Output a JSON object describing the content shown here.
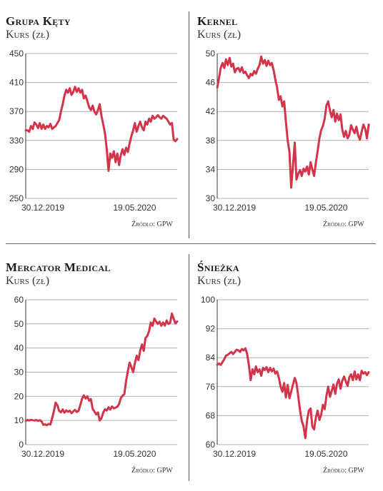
{
  "source_label": "Źródło: GPW",
  "colors": {
    "line": "#d4344a",
    "grid": "#b0b0b0",
    "axis": "#333333"
  },
  "chart_data": [
    {
      "type": "line",
      "title": "Grupa Kęty",
      "subtitle": "Kurs (zł)",
      "ylim": [
        250,
        450
      ],
      "yticks": [
        250,
        290,
        330,
        370,
        410,
        450
      ],
      "x_tick_labels": [
        "30.12.2019",
        "19.05.2020"
      ],
      "x_tick_index": [
        0,
        61
      ],
      "grid": true,
      "x": [
        0,
        1,
        2,
        3,
        4,
        5,
        6,
        7,
        8,
        9,
        10,
        11,
        12,
        13,
        14,
        15,
        16,
        17,
        18,
        19,
        20,
        21,
        22,
        23,
        24,
        25,
        26,
        27,
        28,
        29,
        30,
        31,
        32,
        33,
        34,
        35,
        36,
        37,
        38,
        39,
        40,
        41,
        42,
        43,
        44,
        45,
        46,
        47,
        48,
        49,
        50,
        51,
        52,
        53,
        54,
        55,
        56,
        57,
        58,
        59,
        60,
        61,
        62,
        63,
        64,
        65,
        66,
        67,
        68,
        69,
        70,
        71,
        72,
        73,
        74,
        75,
        76,
        77,
        78,
        79,
        80,
        81,
        82,
        83,
        84,
        85,
        86
      ],
      "values": [
        344,
        344,
        342,
        350,
        346,
        355,
        352,
        347,
        354,
        346,
        352,
        346,
        350,
        348,
        353,
        346,
        348,
        350,
        354,
        358,
        370,
        380,
        392,
        400,
        396,
        402,
        393,
        397,
        404,
        397,
        402,
        396,
        400,
        388,
        392,
        384,
        376,
        372,
        378,
        370,
        366,
        372,
        380,
        364,
        352,
        340,
        318,
        288,
        312,
        306,
        315,
        300,
        312,
        296,
        310,
        318,
        310,
        320,
        314,
        326,
        336,
        344,
        354,
        342,
        350,
        356,
        348,
        344,
        356,
        352,
        360,
        356,
        364,
        360,
        362,
        365,
        362,
        360,
        364,
        362,
        360,
        356,
        352,
        354,
        331,
        329,
        332
      ]
    },
    {
      "type": "line",
      "title": "Kernel",
      "subtitle": "Kurs (zł)",
      "ylim": [
        30,
        50
      ],
      "yticks": [
        30,
        34,
        38,
        42,
        46,
        50
      ],
      "x_tick_labels": [
        "30.12.2019",
        "19.05.2020"
      ],
      "x_tick_index": [
        0,
        61
      ],
      "grid": true,
      "x": [
        0,
        1,
        2,
        3,
        4,
        5,
        6,
        7,
        8,
        9,
        10,
        11,
        12,
        13,
        14,
        15,
        16,
        17,
        18,
        19,
        20,
        21,
        22,
        23,
        24,
        25,
        26,
        27,
        28,
        29,
        30,
        31,
        32,
        33,
        34,
        35,
        36,
        37,
        38,
        39,
        40,
        41,
        42,
        43,
        44,
        45,
        46,
        47,
        48,
        49,
        50,
        51,
        52,
        53,
        54,
        55,
        56,
        57,
        58,
        59,
        60,
        61,
        62,
        63,
        64,
        65,
        66,
        67,
        68,
        69,
        70,
        71,
        72,
        73,
        74,
        75,
        76,
        77,
        78,
        79,
        80,
        81,
        82,
        83,
        84,
        85,
        86
      ],
      "values": [
        45.3,
        46.6,
        48.0,
        48.7,
        48.0,
        49.2,
        48.4,
        49.4,
        48.2,
        48.6,
        47.4,
        47.9,
        48.0,
        47.5,
        48.1,
        47.3,
        47.5,
        47.0,
        46.6,
        47.2,
        47.0,
        47.6,
        47.2,
        47.9,
        48.4,
        49.6,
        48.6,
        49.1,
        48.3,
        49.0,
        48.4,
        48.7,
        47.7,
        46.4,
        45.3,
        43.6,
        44.1,
        42.7,
        43.4,
        40.6,
        38.0,
        36.4,
        31.5,
        34.5,
        37.7,
        32.6,
        33.4,
        33.9,
        33.1,
        34.1,
        33.7,
        34.4,
        33.3,
        35.0,
        34.0,
        33.1,
        34.9,
        36.5,
        38.3,
        39.4,
        40.0,
        41.0,
        42.8,
        43.4,
        42.1,
        41.2,
        42.2,
        40.6,
        41.7,
        40.8,
        41.6,
        39.5,
        38.5,
        39.3,
        38.3,
        38.8,
        40.1,
        39.5,
        39.0,
        39.9,
        38.7,
        38.1,
        39.2,
        40.2,
        39.6,
        38.3,
        40.2
      ]
    },
    {
      "type": "line",
      "title": "Mercator Medical",
      "subtitle": "Kurs (zł)",
      "ylim": [
        0,
        60
      ],
      "yticks": [
        0,
        10,
        20,
        30,
        40,
        50,
        60
      ],
      "x_tick_labels": [
        "30.12.2019",
        "19.05.2020"
      ],
      "x_tick_index": [
        0,
        61
      ],
      "grid": true,
      "x": [
        0,
        1,
        2,
        3,
        4,
        5,
        6,
        7,
        8,
        9,
        10,
        11,
        12,
        13,
        14,
        15,
        16,
        17,
        18,
        19,
        20,
        21,
        22,
        23,
        24,
        25,
        26,
        27,
        28,
        29,
        30,
        31,
        32,
        33,
        34,
        35,
        36,
        37,
        38,
        39,
        40,
        41,
        42,
        43,
        44,
        45,
        46,
        47,
        48,
        49,
        50,
        51,
        52,
        53,
        54,
        55,
        56,
        57,
        58,
        59,
        60,
        61,
        62,
        63,
        64,
        65,
        66,
        67,
        68,
        69,
        70,
        71,
        72,
        73,
        74,
        75,
        76,
        77,
        78,
        79,
        80,
        81,
        82,
        83,
        84,
        85,
        86
      ],
      "values": [
        9.8,
        10.2,
        10.0,
        10.3,
        10.1,
        10.0,
        10.2,
        9.8,
        10.1,
        9.6,
        8.2,
        8.4,
        8.0,
        8.6,
        8.3,
        11.0,
        13.8,
        17.4,
        16.2,
        14.0,
        13.4,
        14.6,
        13.2,
        14.2,
        13.6,
        14.1,
        13.0,
        13.8,
        14.4,
        13.5,
        14.0,
        16.4,
        19.0,
        20.4,
        19.1,
        20.0,
        18.2,
        18.9,
        14.8,
        13.7,
        12.5,
        13.3,
        10.0,
        10.9,
        13.3,
        14.6,
        14.1,
        15.5,
        14.5,
        15.8,
        15.0,
        15.3,
        15.7,
        16.8,
        19.3,
        20.3,
        20.9,
        26.5,
        30.5,
        34.0,
        32.0,
        30.0,
        33.8,
        36.8,
        35.0,
        39.0,
        41.5,
        38.8,
        44.2,
        45.0,
        47.0,
        50.6,
        49.2,
        52.2,
        51.0,
        50.0,
        50.9,
        49.2,
        50.6,
        49.3,
        51.4,
        50.0,
        50.4,
        54.3,
        52.1,
        50.2,
        51.0
      ]
    },
    {
      "type": "line",
      "title": "Śnieżka",
      "subtitle": "Kurs (zł)",
      "ylim": [
        60,
        100
      ],
      "yticks": [
        60,
        68,
        76,
        84,
        92,
        100
      ],
      "x_tick_labels": [
        "30.12.2019",
        "19.05.2020"
      ],
      "x_tick_index": [
        0,
        61
      ],
      "grid": true,
      "x": [
        0,
        1,
        2,
        3,
        4,
        5,
        6,
        7,
        8,
        9,
        10,
        11,
        12,
        13,
        14,
        15,
        16,
        17,
        18,
        19,
        20,
        21,
        22,
        23,
        24,
        25,
        26,
        27,
        28,
        29,
        30,
        31,
        32,
        33,
        34,
        35,
        36,
        37,
        38,
        39,
        40,
        41,
        42,
        43,
        44,
        45,
        46,
        47,
        48,
        49,
        50,
        51,
        52,
        53,
        54,
        55,
        56,
        57,
        58,
        59,
        60,
        61,
        62,
        63,
        64,
        65,
        66,
        67,
        68,
        69,
        70,
        71,
        72,
        73,
        74,
        75,
        76,
        77,
        78,
        79,
        80,
        81,
        82,
        83,
        84,
        85,
        86
      ],
      "values": [
        82.0,
        82.4,
        82.0,
        82.8,
        83.6,
        84.6,
        84.8,
        85.2,
        85.6,
        85.0,
        85.6,
        86.2,
        86.0,
        85.6,
        86.4,
        86.0,
        86.6,
        85.0,
        81.8,
        77.8,
        80.8,
        79.4,
        81.6,
        80.0,
        80.8,
        79.0,
        81.2,
        80.6,
        81.4,
        80.0,
        81.2,
        80.2,
        81.0,
        79.6,
        80.2,
        78.4,
        76.0,
        74.6,
        77.0,
        73.0,
        76.5,
        72.8,
        74.6,
        76.6,
        78.4,
        77.0,
        73.4,
        69.4,
        66.6,
        65.0,
        61.8,
        66.6,
        69.4,
        70.0,
        65.0,
        64.2,
        67.4,
        69.4,
        66.8,
        68.2,
        71.0,
        69.8,
        73.4,
        76.0,
        73.2,
        74.8,
        76.6,
        74.0,
        76.8,
        78.0,
        75.4,
        77.6,
        78.8,
        77.4,
        76.2,
        78.6,
        79.4,
        77.8,
        80.2,
        78.0,
        79.4,
        77.8,
        80.4,
        79.6,
        80.0,
        79.2,
        80.0
      ]
    }
  ]
}
